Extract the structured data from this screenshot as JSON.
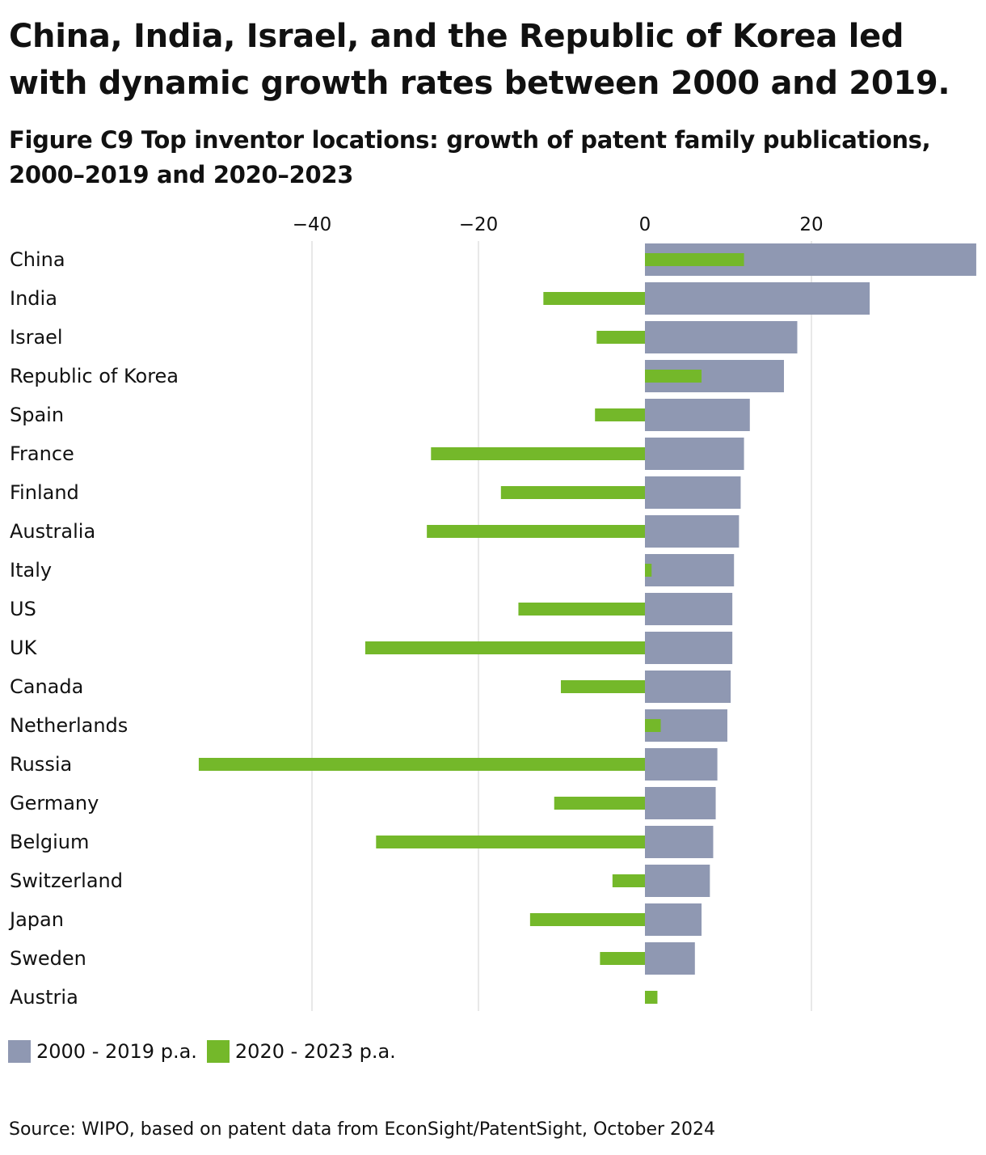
{
  "headline": "China, India, Israel, and the Republic of Korea led with dynamic growth rates between 2000 and 2019.",
  "figure_title": "Figure C9 Top inventor locations: growth of patent family publications, 2000–2019 and 2020–2023",
  "source": "Source: WIPO, based on patent data from EconSight/PatentSight, October 2024",
  "colors": {
    "series_2000_2019": "#8f98b2",
    "series_2020_2023": "#74b82a",
    "grid": "#e0e0e0"
  },
  "legend": [
    {
      "label": "2000 - 2019 p.a.",
      "color": "#8f98b2"
    },
    {
      "label": "2020 - 2023 p.a.",
      "color": "#74b82a"
    }
  ],
  "chart_data": {
    "type": "bar",
    "orientation": "horizontal",
    "title": "Figure C9 Top inventor locations: growth of patent family publications, 2000–2019 and 2020–2023",
    "xlabel": "",
    "ylabel": "",
    "xlim": [
      -58,
      40
    ],
    "x_ticks": [
      -40,
      -20,
      0,
      20
    ],
    "x_tick_labels": [
      "−40",
      "−20",
      "0",
      "20"
    ],
    "grid": true,
    "legend_position": "bottom-left",
    "categories": [
      "China",
      "India",
      "Israel",
      "Republic of Korea",
      "Spain",
      "France",
      "Finland",
      "Australia",
      "Italy",
      "US",
      "UK",
      "Canada",
      "Netherlands",
      "Russia",
      "Germany",
      "Belgium",
      "Switzerland",
      "Japan",
      "Sweden",
      "Austria"
    ],
    "series": [
      {
        "name": "2000 - 2019 p.a.",
        "values": [
          39.8,
          27.0,
          18.3,
          16.7,
          12.6,
          11.9,
          11.5,
          11.3,
          10.7,
          10.5,
          10.5,
          10.3,
          9.9,
          8.7,
          8.5,
          8.2,
          7.8,
          6.8,
          6.0,
          0
        ]
      },
      {
        "name": "2020 - 2023 p.a.",
        "values": [
          11.9,
          -12.2,
          -5.8,
          6.8,
          -6.0,
          -25.7,
          -17.3,
          -26.2,
          0.8,
          -15.2,
          -33.6,
          -10.1,
          1.9,
          -53.6,
          -10.9,
          -32.3,
          -3.9,
          -13.8,
          -5.4,
          1.5
        ]
      }
    ]
  }
}
